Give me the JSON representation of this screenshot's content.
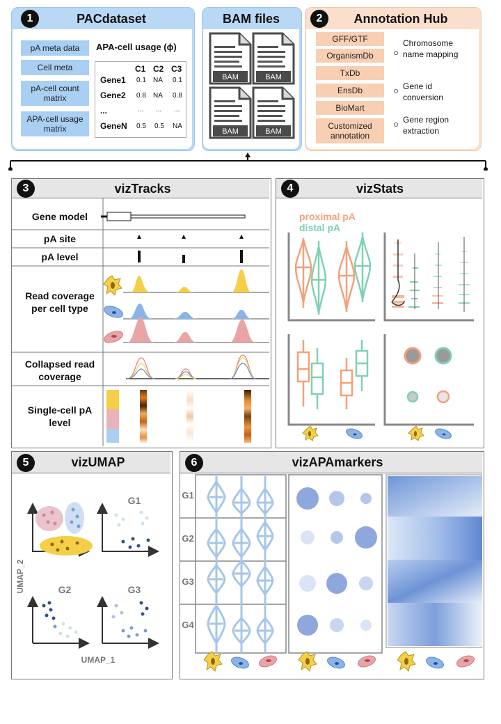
{
  "pacdataset": {
    "number": "1",
    "title": "PACdataset",
    "chips": [
      "pA meta data",
      "Cell meta",
      "pA-cell count matrix",
      "APA-cell usage matrix"
    ],
    "usage_title": "APA-cell usage (ϕ)",
    "table": {
      "columns": [
        "C1",
        "C2",
        "C3"
      ],
      "rows": [
        {
          "gene": "Gene1",
          "values": [
            "0.1",
            "NA",
            "0.1"
          ]
        },
        {
          "gene": "Gene2",
          "values": [
            "0.8",
            "NA",
            "0.8"
          ]
        },
        {
          "gene": "...",
          "values": [
            "...",
            "...",
            "..."
          ]
        },
        {
          "gene": "GeneN",
          "values": [
            "0.5",
            "0.5",
            "NA"
          ]
        }
      ]
    }
  },
  "bam": {
    "title": "BAM files",
    "file_label": "BAM"
  },
  "annotation_hub": {
    "number": "2",
    "title": "Annotation Hub",
    "items": [
      "GFF/GTF",
      "OrganismDb",
      "TxDb",
      "EnsDb",
      "BioMart",
      "Customized annotation"
    ],
    "uses": [
      "Chromosome name mapping",
      "Gene id conversion",
      "Gene region extraction"
    ]
  },
  "viztracks": {
    "number": "3",
    "title": "vizTracks",
    "rows": [
      "Gene model",
      "pA site",
      "pA level",
      "Read coverage per cell type",
      "Collapsed read coverage",
      "Single-cell pA level"
    ]
  },
  "vizstats": {
    "number": "4",
    "title": "vizStats",
    "legend": [
      "proximal pA",
      "distal pA"
    ]
  },
  "vizumap": {
    "number": "5",
    "title": "vizUMAP",
    "subplots": [
      "G1",
      "G2",
      "G3"
    ],
    "xlabel": "UMAP_1",
    "ylabel": "UMAP_2"
  },
  "vizapamarkers": {
    "number": "6",
    "title": "vizAPAmarkers",
    "genes": [
      "G1",
      "G2",
      "G3",
      "G4"
    ]
  },
  "colors": {
    "blue_light": "#a9cff3",
    "peach": "#f8cfb3",
    "proximal": "#f4a07a",
    "distal": "#7fd1b0",
    "yellow": "#f5cf47",
    "cell_blue": "#8ab4e8",
    "cell_pink": "#e9a5a6",
    "dark_blue": "#2f4e8c"
  }
}
